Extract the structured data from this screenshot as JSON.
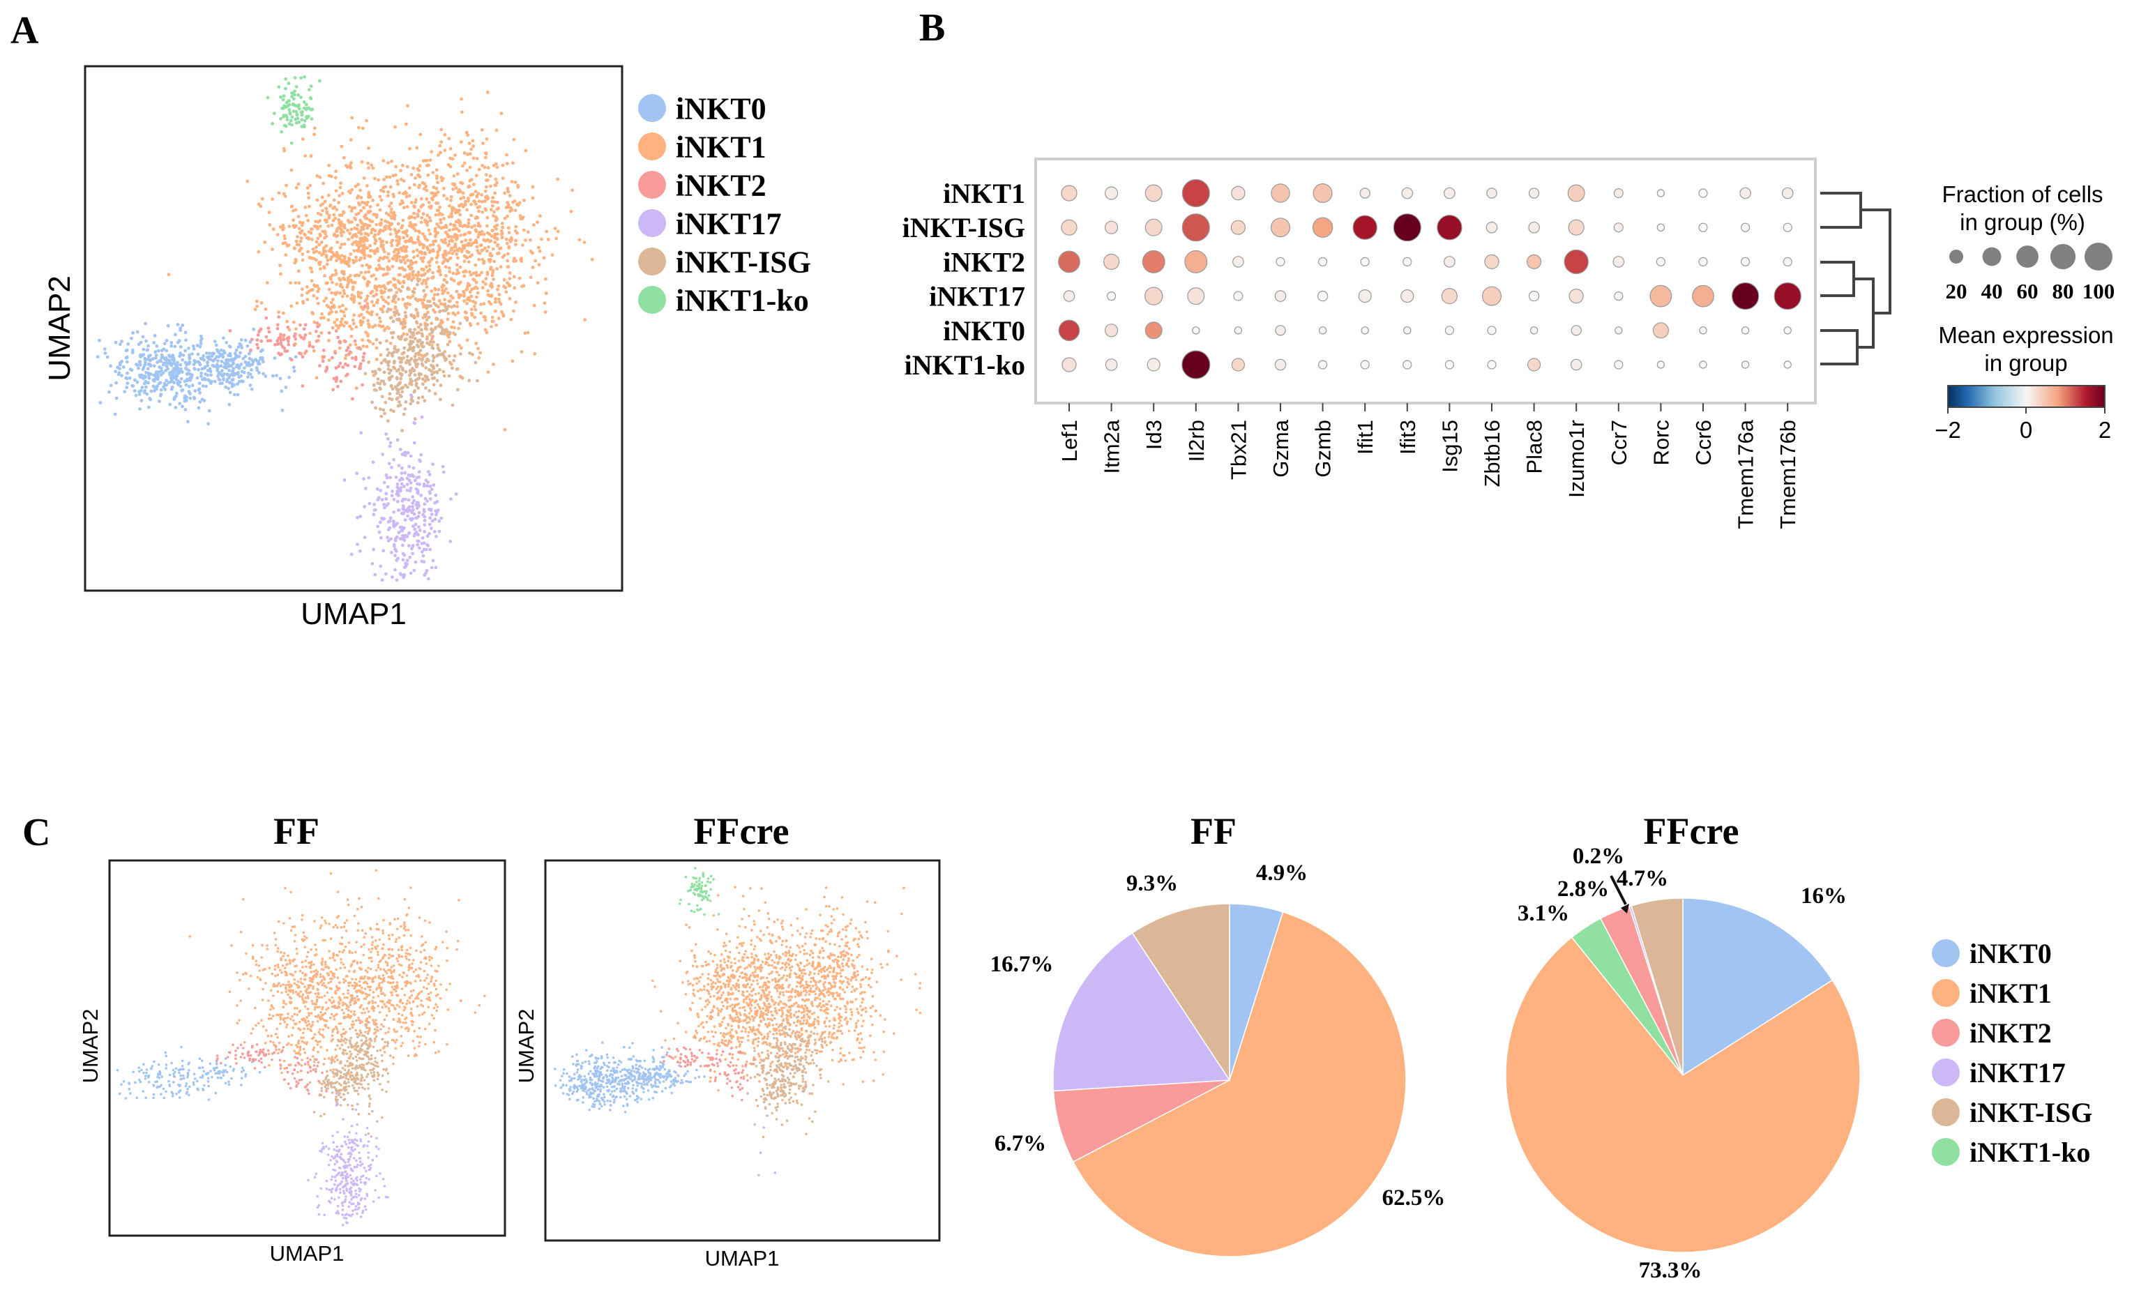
{
  "colors": {
    "iNKT0": "#a1c4f2",
    "iNKT1": "#ffb27f",
    "iNKT2": "#f99b9a",
    "iNKT17": "#cdb8f7",
    "iNKT-ISG": "#dcb797",
    "iNKT1-ko": "#8fe0a1",
    "cmap_low": "#053061",
    "cmap_mid": "#f7f7f7",
    "cmap_high": "#67001f"
  },
  "panel_labels": {
    "a": "A",
    "b": "B",
    "c": "C"
  },
  "legend_labels": [
    "iNKT0",
    "iNKT1",
    "iNKT2",
    "iNKT17",
    "iNKT-ISG",
    "iNKT1-ko"
  ],
  "chart_data": [
    {
      "id": "umap_all",
      "type": "scatter",
      "title": "",
      "xlabel": "UMAP1",
      "ylabel": "UMAP2",
      "clusters": [
        "iNKT0",
        "iNKT1",
        "iNKT2",
        "iNKT17",
        "iNKT-ISG",
        "iNKT1-ko"
      ]
    },
    {
      "id": "dotplot",
      "type": "scatter",
      "title": "",
      "genes": [
        "Lef1",
        "Itm2a",
        "Id3",
        "Il2rb",
        "Tbx21",
        "Gzma",
        "Gzmb",
        "Ifit1",
        "Ifit3",
        "Isg15",
        "Zbtb16",
        "Plac8",
        "Izumo1r",
        "Ccr7",
        "Rorc",
        "Ccr6",
        "Tmem176a",
        "Tmem176b"
      ],
      "groups": [
        "iNKT1",
        "iNKT-ISG",
        "iNKT2",
        "iNKT17",
        "iNKT0",
        "iNKT1-ko"
      ],
      "fraction": [
        [
          25,
          15,
          30,
          95,
          18,
          38,
          40,
          8,
          10,
          10,
          8,
          8,
          30,
          6,
          3,
          5,
          10,
          10
        ],
        [
          25,
          15,
          30,
          95,
          20,
          40,
          45,
          70,
          95,
          75,
          10,
          10,
          25,
          6,
          3,
          5,
          5,
          5
        ],
        [
          55,
          25,
          60,
          60,
          10,
          5,
          5,
          5,
          5,
          10,
          20,
          20,
          70,
          10,
          5,
          5,
          5,
          5
        ],
        [
          10,
          5,
          35,
          30,
          6,
          10,
          8,
          15,
          15,
          25,
          40,
          8,
          20,
          5,
          55,
          55,
          90,
          90
        ],
        [
          50,
          15,
          30,
          3,
          3,
          8,
          3,
          3,
          3,
          5,
          5,
          3,
          8,
          3,
          25,
          3,
          3,
          3
        ],
        [
          20,
          12,
          15,
          100,
          15,
          10,
          5,
          5,
          5,
          5,
          5,
          15,
          10,
          5,
          3,
          3,
          3,
          3
        ]
      ],
      "mean_expression": [
        [
          0.3,
          0.1,
          0.3,
          1.3,
          0.2,
          0.5,
          0.5,
          0.1,
          0.1,
          0.1,
          0.1,
          0.1,
          0.4,
          0.1,
          0.0,
          0.0,
          0.1,
          0.1
        ],
        [
          0.3,
          0.2,
          0.3,
          1.2,
          0.3,
          0.5,
          0.8,
          1.6,
          2.0,
          1.7,
          0.1,
          0.1,
          0.3,
          0.1,
          0.0,
          0.0,
          0.0,
          0.0
        ],
        [
          1.1,
          0.3,
          1.0,
          0.7,
          0.1,
          0.0,
          0.0,
          0.0,
          0.0,
          0.1,
          0.3,
          0.5,
          1.3,
          0.1,
          0.0,
          0.0,
          0.0,
          0.0
        ],
        [
          0.1,
          0.0,
          0.3,
          0.2,
          0.0,
          0.1,
          0.0,
          0.1,
          0.1,
          0.3,
          0.4,
          0.0,
          0.2,
          0.0,
          0.6,
          0.7,
          2.0,
          1.7
        ],
        [
          1.3,
          0.2,
          0.9,
          0.0,
          0.0,
          0.1,
          0.0,
          0.0,
          0.0,
          0.0,
          0.0,
          0.0,
          0.1,
          0.0,
          0.4,
          0.0,
          0.0,
          0.0
        ],
        [
          0.2,
          0.1,
          0.1,
          2.0,
          0.3,
          0.1,
          0.0,
          0.0,
          0.0,
          0.0,
          0.0,
          0.3,
          0.1,
          0.0,
          0.0,
          0.0,
          0.0,
          0.0
        ]
      ],
      "size_legend_title": "Fraction of cells\nin group (%)",
      "size_legend_values": [
        20,
        40,
        60,
        80,
        100
      ],
      "color_legend_title": "Mean expression\nin group",
      "color_range": [
        -2,
        2
      ],
      "color_ticks": [
        "−2",
        "0",
        "2"
      ]
    },
    {
      "id": "umap_ff",
      "type": "scatter",
      "title": "FF",
      "xlabel": "UMAP1",
      "ylabel": "UMAP2"
    },
    {
      "id": "umap_ffcre",
      "type": "scatter",
      "title": "FFcre",
      "xlabel": "UMAP1",
      "ylabel": "UMAP2"
    },
    {
      "id": "pie_ff",
      "type": "pie",
      "title": "FF",
      "categories": [
        "iNKT0",
        "iNKT1",
        "iNKT2",
        "iNKT17",
        "iNKT-ISG"
      ],
      "values": [
        4.9,
        62.5,
        6.7,
        16.7,
        9.3
      ],
      "labels": [
        "4.9%",
        "62.5%",
        "6.7%",
        "16.7%",
        "9.3%"
      ]
    },
    {
      "id": "pie_ffcre",
      "type": "pie",
      "title": "FFcre",
      "categories": [
        "iNKT0",
        "iNKT1",
        "iNKT1-ko",
        "iNKT2",
        "iNKT17",
        "iNKT-ISG"
      ],
      "values": [
        16,
        73.3,
        3.1,
        2.8,
        0.2,
        4.7
      ],
      "labels": [
        "16%",
        "73.3%",
        "3.1%",
        "2.8%",
        "0.2%",
        "4.7%"
      ]
    }
  ]
}
